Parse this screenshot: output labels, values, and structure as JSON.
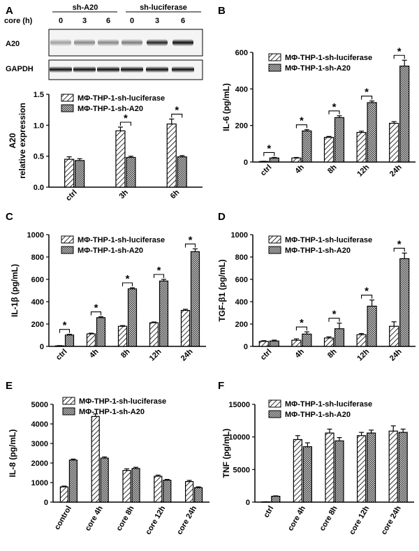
{
  "figure": {
    "panel_labels": [
      "A",
      "B",
      "C",
      "D",
      "E",
      "F"
    ]
  },
  "blot": {
    "header_left": "sh-A20",
    "header_right": "sh-luciferase",
    "time_label": "core (h)",
    "times": [
      "0",
      "3",
      "6",
      "0",
      "3",
      "6"
    ],
    "row_labels": [
      "A20",
      "GAPDH"
    ]
  },
  "colors": {
    "luciferase_fill": "#ffffff",
    "a20_fill": "#d9d9d9",
    "stroke": "#000000"
  },
  "chart_data": [
    {
      "panel": "A",
      "type": "bar",
      "title": "",
      "xlabel": "",
      "ylabel": "A20\nrelative expression",
      "categories": [
        "ctrl",
        "3h",
        "6h"
      ],
      "yticks": [
        "0.0",
        "0.5",
        "1.0",
        "1.5"
      ],
      "ylim": [
        0,
        1.5
      ],
      "legend": "top-left",
      "series": [
        {
          "name": "MΦ-THP-1-sh-luciferase",
          "values": [
            0.45,
            0.91,
            1.02
          ],
          "errors": [
            0.04,
            0.06,
            0.08
          ]
        },
        {
          "name": "MΦ-THP-1-sh-A20",
          "values": [
            0.43,
            0.48,
            0.49
          ],
          "errors": [
            0.03,
            0.02,
            0.02
          ]
        }
      ],
      "significance": [
        {
          "category": "3h",
          "label": "*"
        },
        {
          "category": "6h",
          "label": "*"
        }
      ]
    },
    {
      "panel": "B",
      "type": "bar",
      "title": "",
      "xlabel": "",
      "ylabel": "IL-6 (pg/mL)",
      "categories": [
        "ctrl",
        "4h",
        "8h",
        "12h",
        "24h"
      ],
      "yticks": [
        "0",
        "200",
        "400",
        "600"
      ],
      "ylim": [
        0,
        600
      ],
      "legend": "top-left",
      "series": [
        {
          "name": "MΦ-THP-1-sh-luciferase",
          "values": [
            3,
            22,
            135,
            162,
            212
          ],
          "errors": [
            1,
            3,
            5,
            7,
            9
          ]
        },
        {
          "name": "MΦ-THP-1-sh-A20",
          "values": [
            22,
            170,
            243,
            325,
            525
          ],
          "errors": [
            3,
            7,
            10,
            9,
            32
          ]
        }
      ],
      "significance": [
        {
          "category": "ctrl",
          "label": "*"
        },
        {
          "category": "4h",
          "label": "*"
        },
        {
          "category": "8h",
          "label": "*"
        },
        {
          "category": "12h",
          "label": "*"
        },
        {
          "category": "24h",
          "label": "*"
        }
      ]
    },
    {
      "panel": "C",
      "type": "bar",
      "title": "",
      "xlabel": "",
      "ylabel": "IL-1β (pg/mL)",
      "categories": [
        "ctrl",
        "4h",
        "8h",
        "12h",
        "24h"
      ],
      "yticks": [
        "0",
        "200",
        "400",
        "600",
        "800",
        "1000"
      ],
      "ylim": [
        0,
        1000
      ],
      "legend": "top-left",
      "series": [
        {
          "name": "MΦ-THP-1-sh-luciferase",
          "values": [
            5,
            112,
            180,
            212,
            322
          ],
          "errors": [
            2,
            6,
            6,
            6,
            10
          ]
        },
        {
          "name": "MΦ-THP-1-sh-A20",
          "values": [
            102,
            257,
            515,
            585,
            848
          ],
          "errors": [
            6,
            8,
            10,
            15,
            25
          ]
        }
      ],
      "significance": [
        {
          "category": "ctrl",
          "label": "*"
        },
        {
          "category": "4h",
          "label": "*"
        },
        {
          "category": "8h",
          "label": "*"
        },
        {
          "category": "12h",
          "label": "*"
        },
        {
          "category": "24h",
          "label": "*"
        }
      ]
    },
    {
      "panel": "D",
      "type": "bar",
      "title": "",
      "xlabel": "",
      "ylabel": "TGF-β1 (pg/mL)",
      "categories": [
        "ctrl",
        "4h",
        "8h",
        "12h",
        "24h"
      ],
      "yticks": [
        "0",
        "200",
        "400",
        "600",
        "800",
        "1000"
      ],
      "ylim": [
        0,
        1000
      ],
      "legend": "top-left",
      "series": [
        {
          "name": "MΦ-THP-1-sh-luciferase",
          "values": [
            45,
            55,
            75,
            105,
            180
          ],
          "errors": [
            6,
            12,
            10,
            10,
            40
          ]
        },
        {
          "name": "MΦ-THP-1-sh-A20",
          "values": [
            48,
            110,
            158,
            360,
            785
          ],
          "errors": [
            8,
            20,
            50,
            55,
            50
          ]
        }
      ],
      "significance": [
        {
          "category": "4h",
          "label": "*"
        },
        {
          "category": "8h",
          "label": "*"
        },
        {
          "category": "12h",
          "label": "*"
        },
        {
          "category": "24h",
          "label": "*"
        }
      ]
    },
    {
      "panel": "E",
      "type": "bar",
      "title": "",
      "xlabel": "",
      "ylabel": "IL-8 (pg/mL)",
      "categories": [
        "control",
        "core 4h",
        "core 8h",
        "core 12h",
        "core 24h"
      ],
      "yticks": [
        "0",
        "1000",
        "2000",
        "3000",
        "4000",
        "5000"
      ],
      "ylim": [
        0,
        5000
      ],
      "legend": "top-left",
      "series": [
        {
          "name": "MΦ-THP-1-sh-luciferase",
          "values": [
            780,
            4380,
            1620,
            1320,
            1050
          ],
          "errors": [
            40,
            130,
            80,
            60,
            60
          ]
        },
        {
          "name": "MΦ-THP-1-sh-A20",
          "values": [
            2150,
            2250,
            1720,
            1120,
            740
          ],
          "errors": [
            50,
            60,
            60,
            40,
            40
          ]
        }
      ],
      "significance": []
    },
    {
      "panel": "F",
      "type": "bar",
      "title": "",
      "xlabel": "",
      "ylabel": "TNF (pg/mL)",
      "categories": [
        "ctrl",
        "core 4h",
        "core 8h",
        "core 12h",
        "core 24h"
      ],
      "yticks": [
        "0",
        "5000",
        "10000",
        "15000"
      ],
      "ylim": [
        0,
        15000
      ],
      "legend": "top-left",
      "series": [
        {
          "name": "MΦ-THP-1-sh-luciferase",
          "values": [
            40,
            9600,
            10600,
            10200,
            10900
          ],
          "errors": [
            20,
            600,
            600,
            500,
            800
          ]
        },
        {
          "name": "MΦ-THP-1-sh-A20",
          "values": [
            900,
            8500,
            9400,
            10600,
            10700
          ],
          "errors": [
            60,
            600,
            500,
            450,
            500
          ]
        }
      ],
      "significance": []
    }
  ]
}
